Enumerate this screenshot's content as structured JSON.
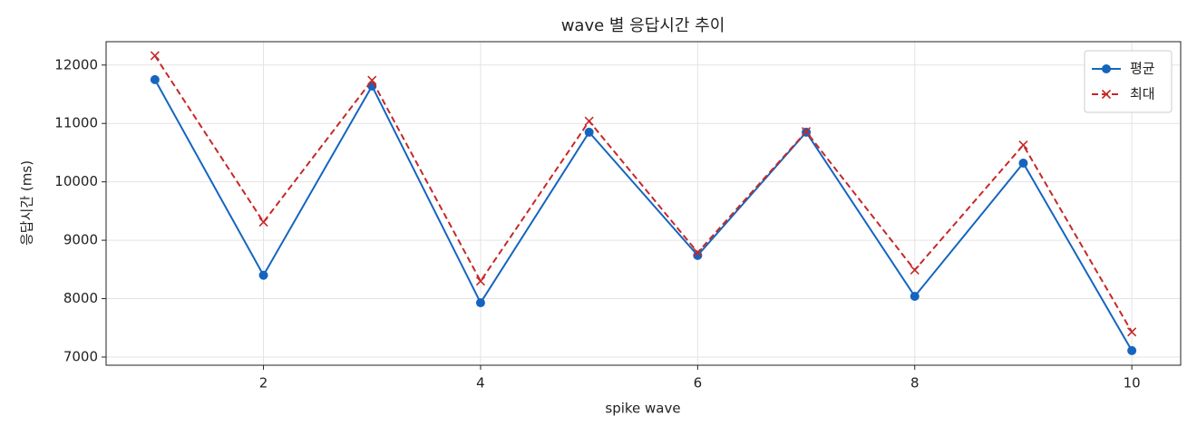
{
  "chart_data": {
    "type": "line",
    "title": "wave 별 응답시간 추이",
    "xlabel": "spike wave",
    "ylabel": "응답시간 (ms)",
    "x": [
      1,
      2,
      3,
      4,
      5,
      6,
      7,
      8,
      9,
      10
    ],
    "series": [
      {
        "name": "평균",
        "color": "#1565c0",
        "marker": "circle",
        "linestyle": "solid",
        "values": [
          11750,
          8400,
          11640,
          7930,
          10850,
          8740,
          10850,
          8040,
          10320,
          7110
        ]
      },
      {
        "name": "최대",
        "color": "#c62828",
        "marker": "x",
        "linestyle": "dashed",
        "values": [
          12160,
          9310,
          11740,
          8300,
          11040,
          8790,
          10860,
          8490,
          10630,
          7430
        ]
      }
    ],
    "xlim": [
      0.55,
      10.45
    ],
    "ylim": [
      6860,
      12400
    ],
    "xticks": [
      2,
      4,
      6,
      8,
      10
    ],
    "yticks": [
      7000,
      8000,
      9000,
      10000,
      11000,
      12000
    ],
    "grid": true,
    "legend": "upper right"
  }
}
